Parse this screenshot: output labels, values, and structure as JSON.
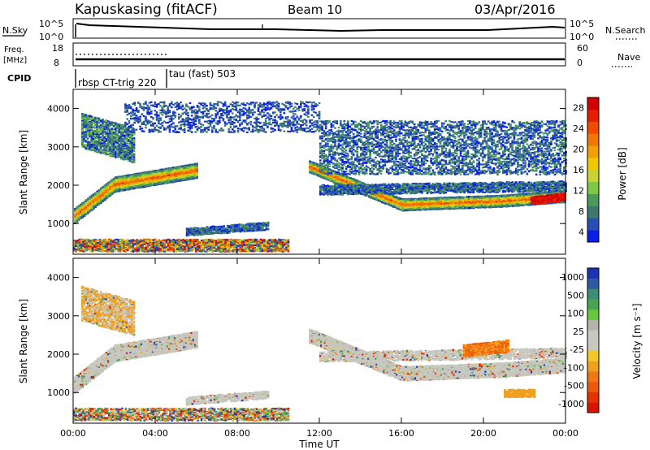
{
  "header": {
    "station": "Kapuskasing (fitACF)",
    "beam": "Beam 10",
    "date": "03/Apr/2016"
  },
  "chart_data": [
    {
      "type": "line",
      "name": "noise-panel",
      "left_label": "N.Sky",
      "right_label": "N.Search",
      "left_ticks": [
        "10^5",
        "10^0"
      ],
      "right_ticks": [
        "10^5",
        "10^0"
      ],
      "legend_style": "dotted"
    },
    {
      "type": "line",
      "name": "frequency-nave-panel",
      "left_label_1": "Freq.",
      "left_label_2": "[MHz]",
      "left_ticks": [
        "18",
        "8"
      ],
      "right_label": "Nave",
      "right_ticks": [
        "60",
        "0"
      ],
      "cpid_label": "CPID",
      "cpid_segments": [
        {
          "start": "00:00",
          "label": "rbsp CT-trig 220"
        },
        {
          "start": "04:40",
          "label": "tau (fast) 503"
        }
      ]
    },
    {
      "type": "heatmap",
      "name": "power",
      "ylabel": "Slant Range [km]",
      "yticks": [
        "4000",
        "3000",
        "2000",
        "1000"
      ],
      "ylim": [
        200,
        4500
      ],
      "colorbar_label": "Power [dB]",
      "colorbar_ticks": [
        "28",
        "24",
        "20",
        "16",
        "12",
        "8",
        "4"
      ],
      "colors": [
        "#0a1ee6",
        "#2850b4",
        "#3c786e",
        "#4a9a5a",
        "#7ac846",
        "#c8d232",
        "#f0c800",
        "#f0a000",
        "#f07800",
        "#f04b00",
        "#e61e00",
        "#d20000"
      ]
    },
    {
      "type": "heatmap",
      "name": "velocity",
      "ylabel": "Slant Range [km]",
      "yticks": [
        "4000",
        "3000",
        "2000",
        "1000"
      ],
      "ylim": [
        200,
        4500
      ],
      "colorbar_label": "Velocity [m s⁻¹]",
      "colorbar_ticks": [
        "1000",
        "500",
        "100",
        "25",
        "-25",
        "-100",
        "-500",
        "-1000"
      ],
      "colors": [
        "#1e32b4",
        "#2d5aa0",
        "#3c8c78",
        "#46a550",
        "#64c83c",
        "#b4b4aa",
        "#c8c8c0",
        "#c8c8c0",
        "#f0c828",
        "#f0a01e",
        "#f07814",
        "#eb5a0a",
        "#e63200",
        "#d71400"
      ],
      "xlabel": "Time UT",
      "xticks": [
        "00:00",
        "04:00",
        "08:00",
        "12:00",
        "16:00",
        "20:00",
        "00:00"
      ]
    }
  ]
}
